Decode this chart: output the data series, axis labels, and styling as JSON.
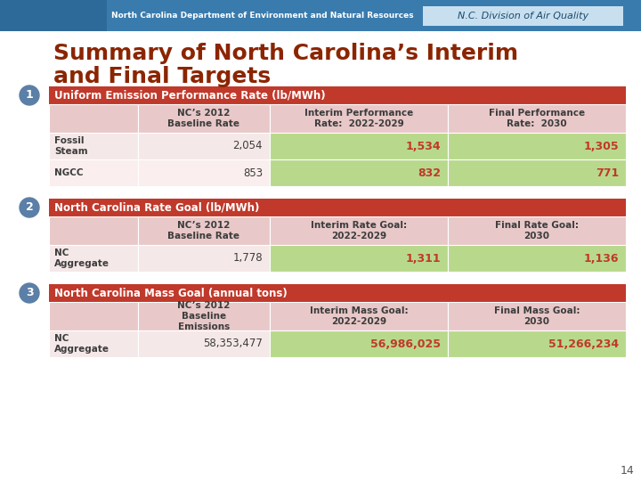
{
  "title_line1": "Summary of North Carolina’s Interim",
  "title_line2": "and Final Targets",
  "title_color": "#8B2500",
  "bg_color": "#FFFFFF",
  "table1_header": "Uniform Emission Performance Rate (lb/MWh)",
  "table1_header_bg": "#C0392B",
  "table1_col_headers": [
    "NC’s 2012\nBaseline Rate",
    "Interim Performance\nRate:  2022-2029",
    "Final Performance\nRate:  2030"
  ],
  "table1_col_header_bg": "#E8C8C8",
  "table1_col2_bg": "#B8D98B",
  "table1_col3_bg": "#B8D98B",
  "table1_rows": [
    [
      "Fossil\nSteam",
      "2,054",
      "1,534",
      "1,305"
    ],
    [
      "NGCC",
      "853",
      "832",
      "771"
    ]
  ],
  "table1_row_bg1": "#F5E8E8",
  "table1_row_bg2": "#FBEEEE",
  "table2_header": "North Carolina Rate Goal (lb/MWh)",
  "table2_header_bg": "#C0392B",
  "table2_col_headers": [
    "NC’s 2012\nBaseline Rate",
    "Interim Rate Goal:\n2022-2029",
    "Final Rate Goal:\n2030"
  ],
  "table2_col_header_bg": "#E8C8C8",
  "table2_col2_bg": "#B8D98B",
  "table2_col3_bg": "#B8D98B",
  "table2_rows": [
    [
      "NC\nAggregate",
      "1,778",
      "1,311",
      "1,136"
    ]
  ],
  "table2_row_bg": "#F5E8E8",
  "table3_header": "North Carolina Mass Goal (annual tons)",
  "table3_header_bg": "#C0392B",
  "table3_col_headers": [
    "NC’s 2012\nBaseline\nEmissions",
    "Interim Mass Goal:\n2022-2029",
    "Final Mass Goal:\n2030"
  ],
  "table3_col_header_bg": "#E8C8C8",
  "table3_col2_bg": "#B8D98B",
  "table3_col3_bg": "#B8D98B",
  "table3_rows": [
    [
      "NC\nAggregate",
      "58,353,477",
      "56,986,025",
      "51,266,234"
    ]
  ],
  "table3_row_bg": "#F5E8E8",
  "value_color_red": "#C0392B",
  "circle_bg": "#5B7FA6",
  "slide_number": "14",
  "top_bar_color": "#3A7BAD",
  "top_bar_left_color": "#2E6A99",
  "top_bar_text": "North Carolina Department of Environment and Natural Resources",
  "top_bar_right_text": "N.C. Division of Air Quality",
  "top_bar_right_bg": "#C8DFF0",
  "top_bar_right_text_color": "#1A4A6B"
}
